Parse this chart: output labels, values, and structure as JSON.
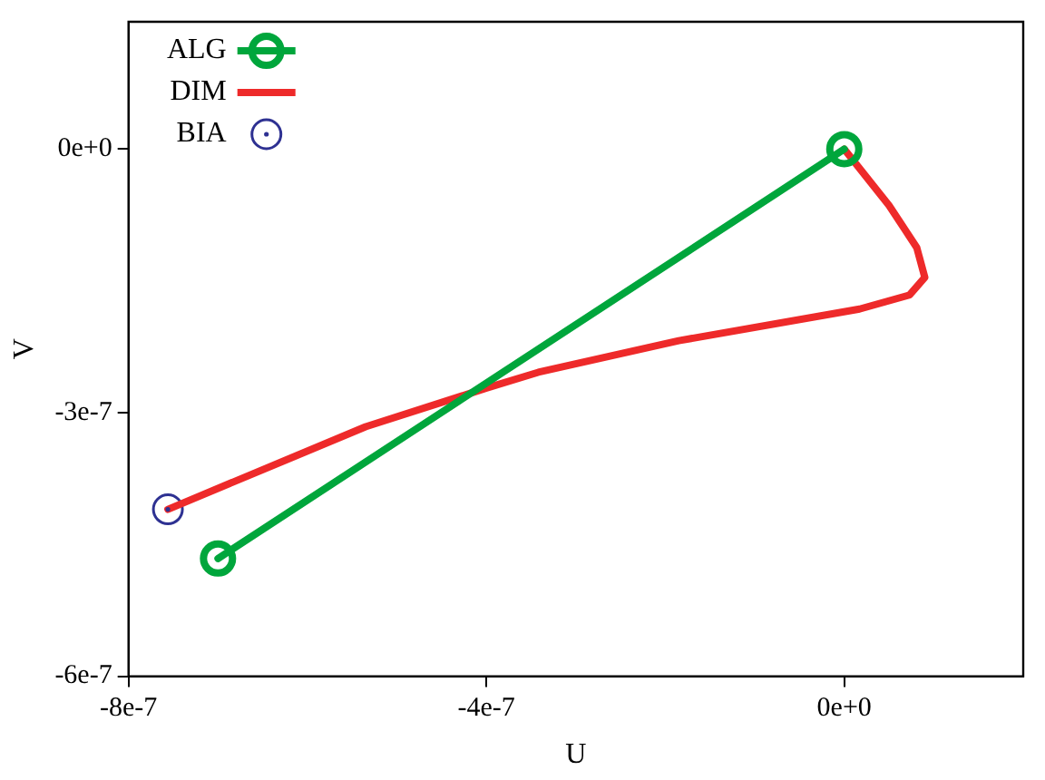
{
  "chart_data": {
    "type": "line",
    "xlabel": "U",
    "ylabel": "V",
    "xlim": [
      -8e-07,
      2e-07
    ],
    "ylim": [
      -6e-07,
      1.45e-07
    ],
    "xticks": [
      {
        "value": -8e-07,
        "label": "-8e-7"
      },
      {
        "value": -4e-07,
        "label": "-4e-7"
      },
      {
        "value": 0,
        "label": "0e+0"
      }
    ],
    "yticks": [
      {
        "value": -6e-07,
        "label": "-6e-7"
      },
      {
        "value": -3e-07,
        "label": "-3e-7"
      },
      {
        "value": 0,
        "label": "0e+0"
      }
    ],
    "grid": false,
    "legend": "top left",
    "series": [
      {
        "name": "ALG",
        "color": "#00a63c",
        "marker": "circle",
        "x": [
          0,
          -7e-07
        ],
        "values": [
          0,
          -4.66e-07
        ]
      },
      {
        "name": "DIM",
        "color": "#ee2a2a",
        "marker": "none",
        "x": [
          0,
          5e-08,
          8.1e-08,
          9e-08,
          7.3e-08,
          1.7e-08,
          -1.85e-07,
          -3.42e-07,
          -4e-07,
          -5.35e-07,
          -7.56e-07
        ],
        "values": [
          0,
          -6.4e-08,
          -1.12e-07,
          -1.46e-07,
          -1.66e-07,
          -1.82e-07,
          -2.18e-07,
          -2.54e-07,
          -2.72e-07,
          -3.16e-07,
          -4.1e-07
        ]
      },
      {
        "name": "BIA",
        "type": "scatter",
        "color": "#2e3192",
        "marker": "circle",
        "x": [
          -7.56e-07
        ],
        "values": [
          -4.1e-07
        ]
      }
    ]
  }
}
